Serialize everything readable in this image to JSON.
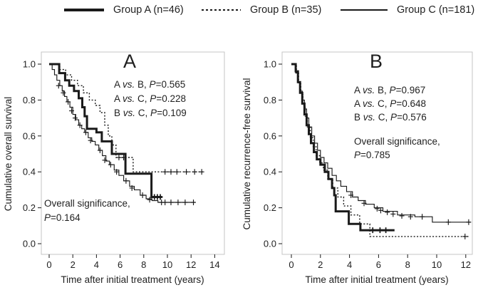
{
  "colors": {
    "line": "#1a1a1a",
    "frame": "#c6c6c6",
    "text": "#1f1f1f",
    "background": "#ffffff"
  },
  "legend": {
    "items": [
      {
        "label": "Group A (n=46)",
        "style": "thick-solid"
      },
      {
        "label": "Group B (n=35)",
        "style": "dotted"
      },
      {
        "label": "Group C (n=181)",
        "style": "thin-solid"
      }
    ]
  },
  "chart_data": [
    {
      "type": "line",
      "subtype": "kaplan-meier-step",
      "panel_label": "A",
      "xlabel": "Time after initial treatment (years)",
      "ylabel": "Cumulative overall survival",
      "xlim": [
        0,
        14.8
      ],
      "ylim": [
        0,
        1.0
      ],
      "xticks": [
        0,
        2,
        4,
        6,
        8,
        10,
        12,
        14
      ],
      "yticks": [
        "0.0",
        "0.2",
        "0.4",
        "0.6",
        "0.8",
        "1.0"
      ],
      "grid": false,
      "annotations": {
        "comparisons": [
          "A vs. B, P=0.565",
          "A vs. C, P=0.228",
          "B vs. C, P=0.109"
        ],
        "overall_line1": "Overall significance,",
        "overall_line2": "P=0.164"
      },
      "series": [
        {
          "name": "Group A (n=46)",
          "style": "thick-solid",
          "steps": [
            [
              0,
              1.0
            ],
            [
              0.85,
              0.95
            ],
            [
              1.35,
              0.91
            ],
            [
              1.7,
              0.88
            ],
            [
              2.1,
              0.85
            ],
            [
              2.5,
              0.81
            ],
            [
              2.8,
              0.76
            ],
            [
              3.0,
              0.71
            ],
            [
              3.2,
              0.64
            ],
            [
              4.0,
              0.62
            ],
            [
              4.45,
              0.57
            ],
            [
              5.3,
              0.5
            ],
            [
              6.45,
              0.39
            ],
            [
              8.65,
              0.26
            ],
            [
              9.55,
              0.26
            ]
          ],
          "censors": [
            [
              8.9,
              0.26
            ],
            [
              9.15,
              0.26
            ],
            [
              9.4,
              0.26
            ]
          ]
        },
        {
          "name": "Group B (n=35)",
          "style": "dotted",
          "steps": [
            [
              0,
              1.0
            ],
            [
              0.9,
              0.97
            ],
            [
              1.4,
              0.94
            ],
            [
              1.9,
              0.91
            ],
            [
              2.4,
              0.88
            ],
            [
              2.9,
              0.84
            ],
            [
              3.4,
              0.8
            ],
            [
              3.9,
              0.77
            ],
            [
              4.3,
              0.73
            ],
            [
              4.7,
              0.66
            ],
            [
              5.0,
              0.6
            ],
            [
              5.3,
              0.55
            ],
            [
              5.65,
              0.48
            ],
            [
              7.1,
              0.4
            ],
            [
              13.0,
              0.4
            ]
          ],
          "censors": [
            [
              5.9,
              0.48
            ],
            [
              6.3,
              0.48
            ],
            [
              9.8,
              0.4
            ],
            [
              10.3,
              0.4
            ],
            [
              10.8,
              0.4
            ],
            [
              11.6,
              0.4
            ],
            [
              12.3,
              0.4
            ],
            [
              12.9,
              0.4
            ]
          ]
        },
        {
          "name": "Group C (n=181)",
          "style": "thin-solid",
          "steps": [
            [
              0,
              1.0
            ],
            [
              0.25,
              0.97
            ],
            [
              0.45,
              0.94
            ],
            [
              0.65,
              0.91
            ],
            [
              0.9,
              0.88
            ],
            [
              1.1,
              0.85
            ],
            [
              1.3,
              0.82
            ],
            [
              1.5,
              0.79
            ],
            [
              1.75,
              0.76
            ],
            [
              2.0,
              0.72
            ],
            [
              2.25,
              0.69
            ],
            [
              2.5,
              0.66
            ],
            [
              2.75,
              0.64
            ],
            [
              3.0,
              0.62
            ],
            [
              3.3,
              0.59
            ],
            [
              3.6,
              0.57
            ],
            [
              3.9,
              0.55
            ],
            [
              4.2,
              0.52
            ],
            [
              4.5,
              0.49
            ],
            [
              4.8,
              0.46
            ],
            [
              5.1,
              0.44
            ],
            [
              5.5,
              0.41
            ],
            [
              5.9,
              0.38
            ],
            [
              6.3,
              0.35
            ],
            [
              6.8,
              0.32
            ],
            [
              7.2,
              0.3
            ],
            [
              7.7,
              0.27
            ],
            [
              8.2,
              0.25
            ],
            [
              8.7,
              0.24
            ],
            [
              9.2,
              0.23
            ],
            [
              12.35,
              0.23
            ]
          ],
          "censors": [
            [
              0.8,
              0.88
            ],
            [
              1.2,
              0.84
            ],
            [
              1.6,
              0.79
            ],
            [
              1.9,
              0.74
            ],
            [
              2.2,
              0.7
            ],
            [
              2.6,
              0.66
            ],
            [
              3.1,
              0.62
            ],
            [
              3.5,
              0.575
            ],
            [
              4.3,
              0.52
            ],
            [
              4.7,
              0.465
            ],
            [
              5.2,
              0.44
            ],
            [
              5.7,
              0.4
            ],
            [
              6.5,
              0.35
            ],
            [
              7.0,
              0.31
            ],
            [
              7.9,
              0.27
            ],
            [
              8.5,
              0.245
            ],
            [
              9.5,
              0.23
            ],
            [
              9.8,
              0.23
            ],
            [
              10.3,
              0.23
            ],
            [
              10.9,
              0.23
            ],
            [
              11.5,
              0.23
            ],
            [
              12.2,
              0.23
            ]
          ]
        }
      ]
    },
    {
      "type": "line",
      "subtype": "kaplan-meier-step",
      "panel_label": "B",
      "xlabel": "Time after initial treatment (years)",
      "ylabel": "Cumulative recurrence-free survival",
      "xlim": [
        0,
        12.5
      ],
      "ylim": [
        0,
        1.0
      ],
      "xticks": [
        0,
        2,
        4,
        6,
        8,
        10,
        12
      ],
      "yticks": [
        "0.0",
        "0.2",
        "0.4",
        "0.6",
        "0.8",
        "1.0"
      ],
      "grid": false,
      "annotations": {
        "comparisons": [
          "A vs. B, P=0.967",
          "A vs. C, P=0.648",
          "B vs. C, P=0.576"
        ],
        "overall_line1": "Overall significance,",
        "overall_line2": "P=0.785"
      },
      "series": [
        {
          "name": "Group A (n=46)",
          "style": "thick-solid",
          "steps": [
            [
              0,
              1.0
            ],
            [
              0.3,
              0.96
            ],
            [
              0.45,
              0.9
            ],
            [
              0.6,
              0.84
            ],
            [
              0.75,
              0.78
            ],
            [
              0.9,
              0.72
            ],
            [
              1.05,
              0.66
            ],
            [
              1.2,
              0.61
            ],
            [
              1.35,
              0.56
            ],
            [
              1.55,
              0.51
            ],
            [
              1.75,
              0.47
            ],
            [
              2.0,
              0.44
            ],
            [
              2.3,
              0.4
            ],
            [
              2.55,
              0.36
            ],
            [
              2.8,
              0.31
            ],
            [
              2.95,
              0.27
            ],
            [
              3.05,
              0.18
            ],
            [
              3.95,
              0.11
            ],
            [
              4.75,
              0.075
            ],
            [
              7.1,
              0.075
            ]
          ],
          "censors": [
            [
              5.6,
              0.075
            ],
            [
              6.1,
              0.075
            ],
            [
              6.5,
              0.075
            ]
          ]
        },
        {
          "name": "Group B (n=35)",
          "style": "dotted",
          "steps": [
            [
              0,
              1.0
            ],
            [
              0.35,
              0.95
            ],
            [
              0.5,
              0.89
            ],
            [
              0.65,
              0.83
            ],
            [
              0.8,
              0.77
            ],
            [
              0.95,
              0.71
            ],
            [
              1.1,
              0.65
            ],
            [
              1.3,
              0.59
            ],
            [
              1.5,
              0.54
            ],
            [
              1.7,
              0.49
            ],
            [
              1.95,
              0.45
            ],
            [
              2.2,
              0.41
            ],
            [
              2.5,
              0.36
            ],
            [
              2.85,
              0.31
            ],
            [
              3.2,
              0.26
            ],
            [
              3.6,
              0.21
            ],
            [
              4.1,
              0.16
            ],
            [
              4.7,
              0.11
            ],
            [
              5.4,
              0.04
            ],
            [
              12.2,
              0.04
            ]
          ],
          "censors": [
            [
              11.95,
              0.04
            ]
          ]
        },
        {
          "name": "Group C (n=181)",
          "style": "thin-solid",
          "steps": [
            [
              0,
              1.0
            ],
            [
              0.3,
              0.95
            ],
            [
              0.45,
              0.9
            ],
            [
              0.6,
              0.85
            ],
            [
              0.75,
              0.8
            ],
            [
              0.9,
              0.75
            ],
            [
              1.05,
              0.7
            ],
            [
              1.2,
              0.65
            ],
            [
              1.4,
              0.6
            ],
            [
              1.6,
              0.56
            ],
            [
              1.8,
              0.52
            ],
            [
              2.0,
              0.48
            ],
            [
              2.25,
              0.45
            ],
            [
              2.5,
              0.42
            ],
            [
              2.8,
              0.38
            ],
            [
              3.1,
              0.35
            ],
            [
              3.4,
              0.32
            ],
            [
              3.8,
              0.29
            ],
            [
              4.2,
              0.26
            ],
            [
              4.6,
              0.24
            ],
            [
              5.1,
              0.22
            ],
            [
              5.7,
              0.2
            ],
            [
              6.3,
              0.18
            ],
            [
              7.3,
              0.16
            ],
            [
              8.5,
              0.15
            ],
            [
              9.7,
              0.12
            ],
            [
              12.35,
              0.12
            ]
          ],
          "censors": [
            [
              4.1,
              0.27
            ],
            [
              5.0,
              0.225
            ],
            [
              5.9,
              0.195
            ],
            [
              6.15,
              0.185
            ],
            [
              6.6,
              0.175
            ],
            [
              7.0,
              0.165
            ],
            [
              7.6,
              0.155
            ],
            [
              8.2,
              0.15
            ],
            [
              9.0,
              0.15
            ],
            [
              10.8,
              0.12
            ],
            [
              12.2,
              0.12
            ]
          ]
        }
      ]
    }
  ]
}
